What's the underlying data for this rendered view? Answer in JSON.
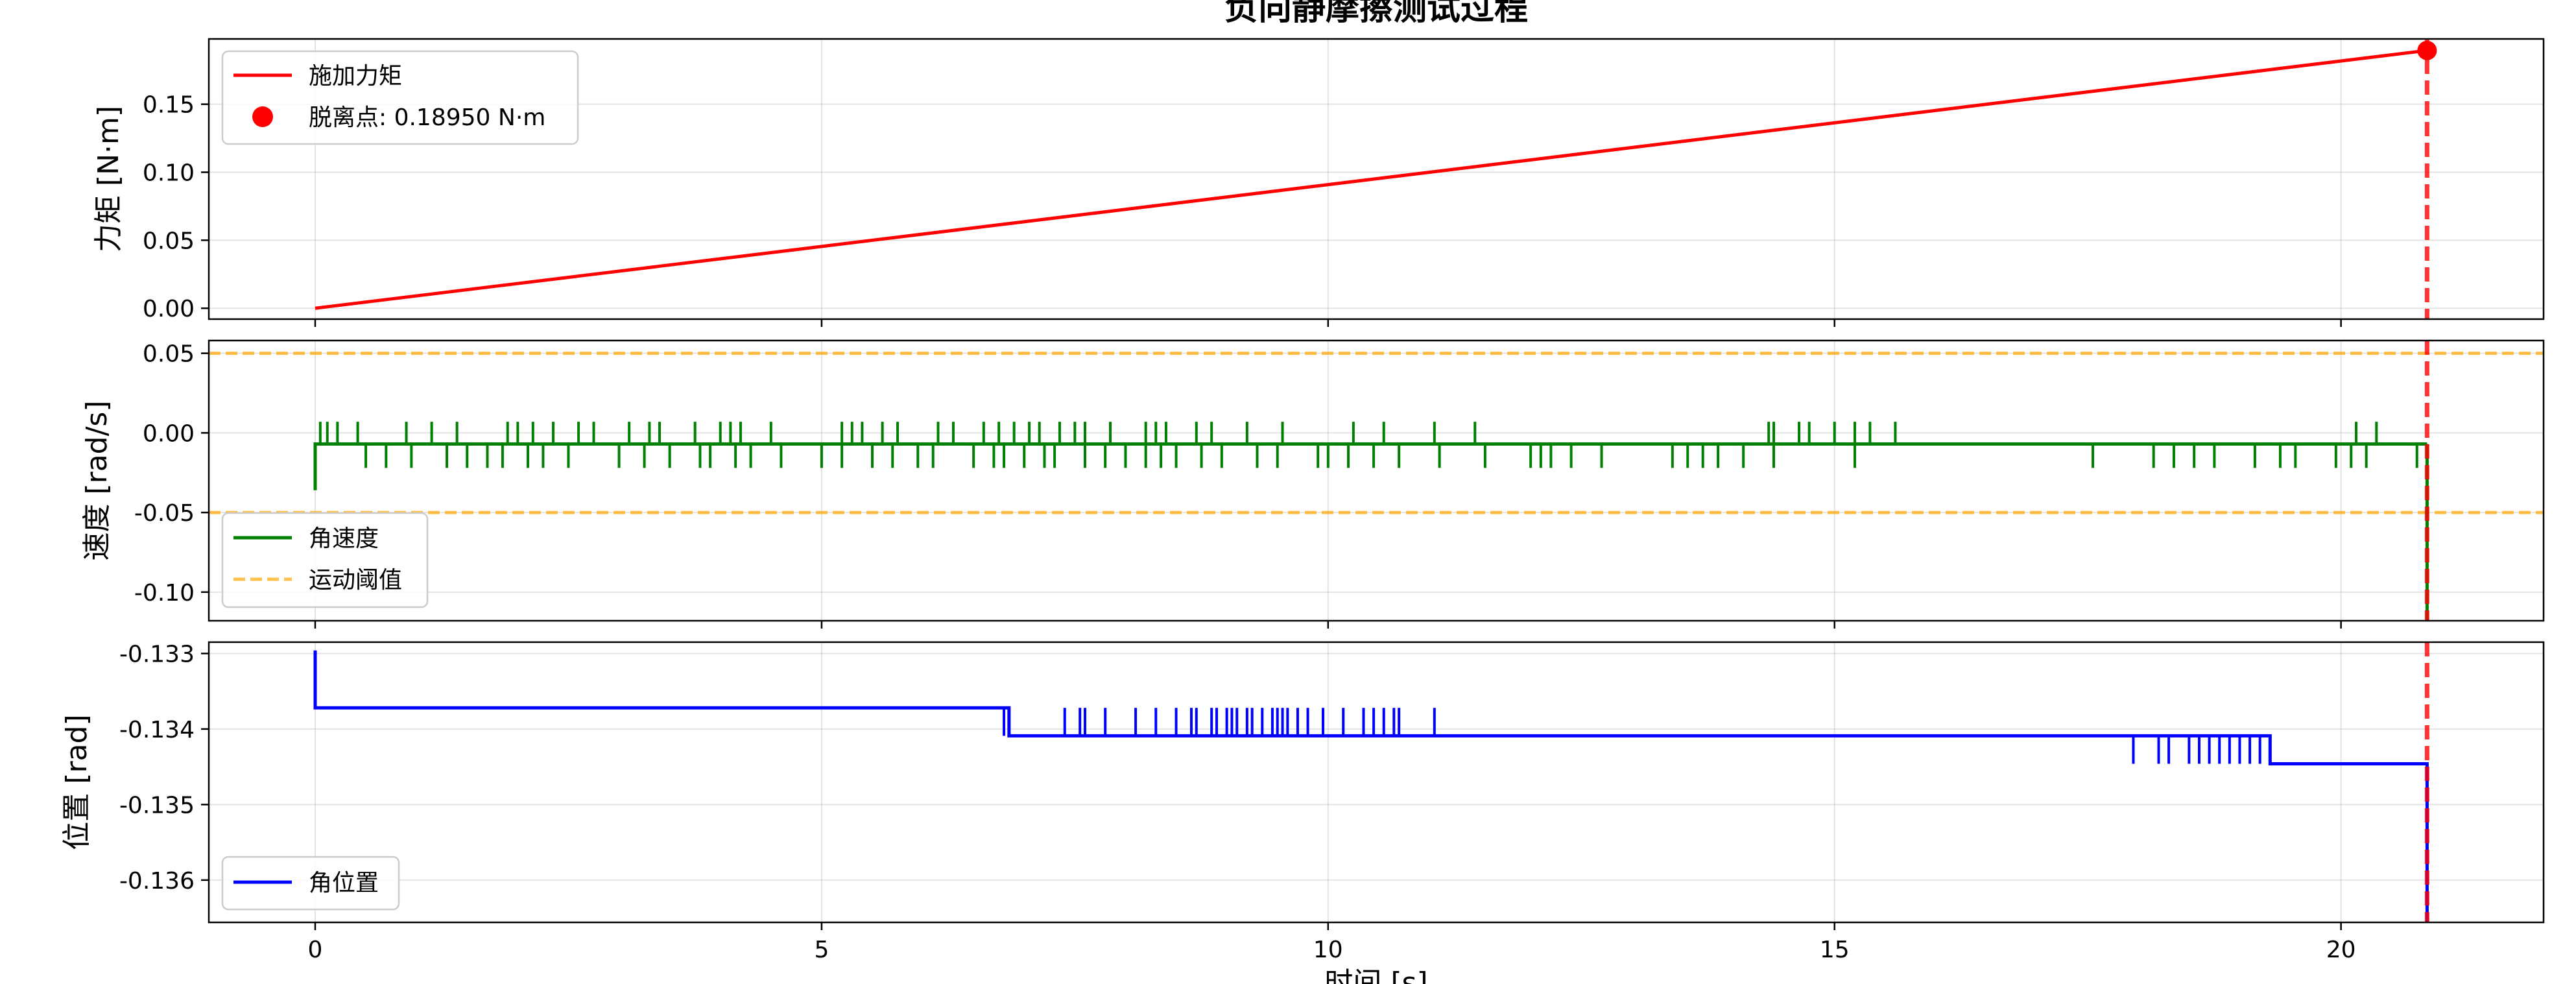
{
  "chart_data": [
    {
      "type": "line",
      "title": "负向静摩擦测试过程",
      "ylabel": "力矩 [N·m]",
      "xlim": [
        -1.05,
        22.0
      ],
      "ylim": [
        -0.008,
        0.198
      ],
      "grid": true,
      "legend_position": "top-left",
      "y_ticks": [
        "0.00",
        "0.05",
        "0.10",
        "0.15"
      ],
      "series": [
        {
          "name": "施加力矩",
          "color": "#ff0000",
          "x": [
            0,
            20.85
          ],
          "y": [
            0,
            0.1895
          ]
        }
      ],
      "markers": [
        {
          "name": "脱离点: 0.18950 N·m",
          "color": "#ff0000",
          "x": 20.85,
          "y": 0.1895
        }
      ],
      "vline": {
        "x": 20.85,
        "color": "#ff0000",
        "style": "dashed"
      }
    },
    {
      "type": "line",
      "ylabel": "速度 [rad/s]",
      "xlim": [
        -1.05,
        22.0
      ],
      "ylim": [
        -0.118,
        0.058
      ],
      "grid": true,
      "legend_position": "bottom-left",
      "y_ticks": [
        "0.05",
        "0.00",
        "-0.05",
        "-0.10"
      ],
      "series": [
        {
          "name": "角速度",
          "color": "#008000",
          "baseline": -0.007,
          "start_dip": -0.036,
          "up_spike": 0.007,
          "down_spike": -0.022,
          "end_dip": -0.118,
          "up_spike_times": [
            0.05,
            0.12,
            0.22,
            0.42,
            0.9,
            1.15,
            1.4,
            1.9,
            2.0,
            2.15,
            2.35,
            2.6,
            2.75,
            3.1,
            3.3,
            3.4,
            3.75,
            4.0,
            4.1,
            4.2,
            4.5,
            5.2,
            5.3,
            5.4,
            5.6,
            5.75,
            6.15,
            6.3,
            6.6,
            6.75,
            6.9,
            7.05,
            7.15,
            7.35,
            7.5,
            7.6,
            7.85,
            8.2,
            8.3,
            8.4,
            8.7,
            8.85,
            9.2,
            9.55,
            10.25,
            10.55,
            11.05,
            11.45,
            14.35,
            14.4,
            14.65,
            14.75,
            15.0,
            15.2,
            15.35,
            15.6,
            20.15,
            20.35
          ],
          "down_spike_times": [
            0.5,
            0.7,
            0.95,
            1.3,
            1.5,
            1.7,
            1.85,
            2.1,
            2.25,
            2.5,
            3.0,
            3.25,
            3.5,
            3.8,
            3.9,
            4.15,
            4.3,
            4.6,
            5.0,
            5.2,
            5.5,
            5.7,
            5.95,
            6.1,
            6.5,
            6.7,
            6.8,
            7.0,
            7.2,
            7.3,
            7.6,
            7.8,
            8.0,
            8.2,
            8.35,
            8.5,
            8.75,
            8.95,
            9.3,
            9.5,
            9.9,
            10.0,
            10.2,
            10.45,
            10.7,
            11.1,
            11.55,
            12.0,
            12.1,
            12.2,
            12.4,
            12.7,
            13.4,
            13.55,
            13.7,
            13.85,
            14.1,
            14.4,
            15.2,
            17.55,
            18.15,
            18.35,
            18.55,
            18.75,
            19.15,
            19.4,
            19.55,
            19.95,
            20.1,
            20.25,
            20.75
          ]
        },
        {
          "name": "运动阈值",
          "color": "#ffa500",
          "style": "dashed",
          "y_values": [
            0.05,
            -0.05
          ]
        }
      ],
      "vline": {
        "x": 20.85,
        "color": "#ff0000",
        "style": "dashed"
      }
    },
    {
      "type": "line",
      "ylabel": "位置 [rad]",
      "xlabel": "时间 [s]",
      "xlim": [
        -1.05,
        22.0
      ],
      "ylim": [
        -0.13656,
        -0.13285
      ],
      "grid": true,
      "legend_position": "bottom-left",
      "x_ticks": [
        "0",
        "5",
        "10",
        "15",
        "20"
      ],
      "y_ticks": [
        "-0.133",
        "-0.134",
        "-0.135",
        "-0.136"
      ],
      "series": [
        {
          "name": "角位置",
          "color": "#0000ff",
          "start": -0.13296,
          "level1": -0.13372,
          "level2": -0.13409,
          "level3": -0.13446,
          "end": -0.13656,
          "switch_level2_time": 6.85,
          "switch_level3_time": 19.3,
          "end_time": 20.85,
          "spikes_level1_down": [
            6.8,
            6.85,
            7.4,
            7.55,
            7.6,
            7.8,
            8.1,
            8.3,
            8.5,
            8.65,
            8.7,
            8.85,
            8.9,
            9.0,
            9.05,
            9.1,
            9.2,
            9.25,
            9.35,
            9.45,
            9.5,
            9.55,
            9.6,
            9.7,
            9.8,
            9.95,
            10.15,
            10.35,
            10.45,
            10.55,
            10.65,
            10.7,
            11.05
          ],
          "spikes_level2_down": [
            17.95,
            18.2,
            18.3,
            18.5,
            18.6,
            18.7,
            18.8,
            18.9,
            19.0,
            19.1,
            19.2,
            19.3
          ]
        }
      ],
      "vline": {
        "x": 20.85,
        "color": "#ff0000",
        "style": "dashed"
      }
    }
  ]
}
